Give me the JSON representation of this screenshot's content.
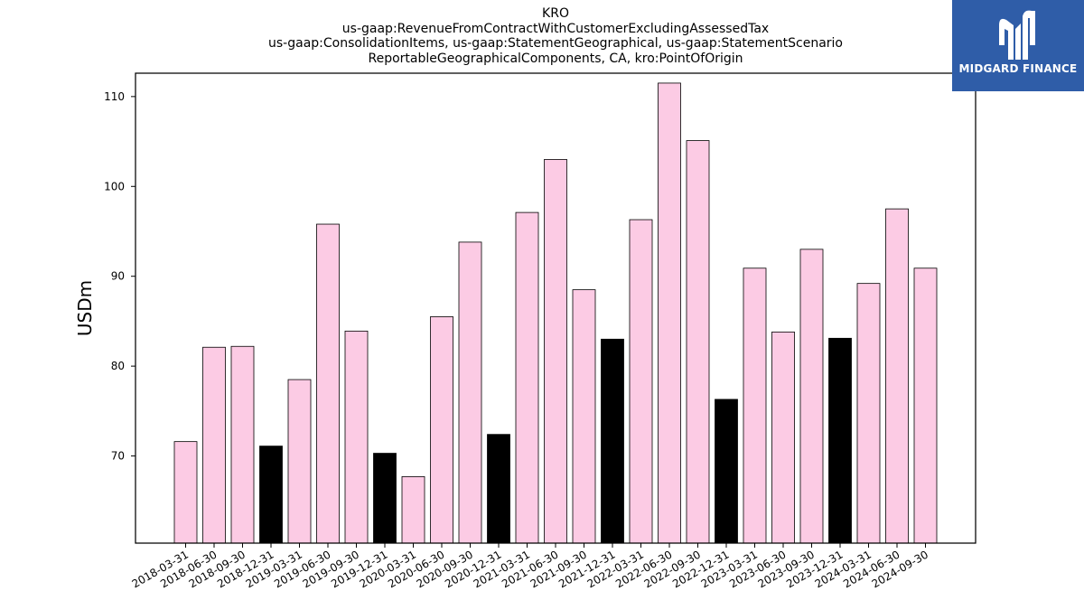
{
  "title_lines": [
    "KRO",
    "us-gaap:RevenueFromContractWithCustomerExcludingAssessedTax",
    "us-gaap:ConsolidationItems, us-gaap:StatementGeographical, us-gaap:StatementScenario",
    "ReportableGeographicalComponents, CA, kro:PointOfOrigin"
  ],
  "logo": {
    "text": "MIDGARD FINANCE",
    "background": "#2f5da8"
  },
  "colors": {
    "quarter_bar": "#fccbe4",
    "year_end_bar": "#000000",
    "bar_edge": "#000000"
  },
  "chart_data": {
    "type": "bar",
    "title": "KRO us-gaap:RevenueFromContractWithCustomerExcludingAssessedTax us-gaap:ConsolidationItems, us-gaap:StatementGeographical, us-gaap:StatementScenario ReportableGeographicalComponents, CA, kro:PointOfOrigin",
    "xlabel": "",
    "ylabel": "USDm",
    "ylim": [
      60.3,
      112.6
    ],
    "yticks": [
      70,
      80,
      90,
      100,
      110
    ],
    "grid": false,
    "categories": [
      "2018-03-31",
      "2018-06-30",
      "2018-09-30",
      "2018-12-31",
      "2019-03-31",
      "2019-06-30",
      "2019-09-30",
      "2019-12-31",
      "2020-03-31",
      "2020-06-30",
      "2020-09-30",
      "2020-12-31",
      "2021-03-31",
      "2021-06-30",
      "2021-09-30",
      "2021-12-31",
      "2022-03-31",
      "2022-06-30",
      "2022-09-30",
      "2022-12-31",
      "2023-03-31",
      "2023-06-30",
      "2023-09-30",
      "2023-12-31",
      "2024-03-31",
      "2024-06-30",
      "2024-09-30"
    ],
    "values": [
      71.6,
      82.1,
      82.2,
      71.1,
      78.5,
      95.8,
      83.9,
      70.3,
      67.7,
      85.5,
      93.8,
      72.4,
      97.1,
      103.0,
      88.5,
      83.0,
      96.3,
      111.5,
      105.1,
      76.3,
      90.9,
      83.8,
      93.0,
      83.1,
      89.2,
      97.5,
      90.9
    ],
    "highlight": [
      false,
      false,
      false,
      true,
      false,
      false,
      false,
      true,
      false,
      false,
      false,
      true,
      false,
      false,
      false,
      true,
      false,
      false,
      false,
      true,
      false,
      false,
      false,
      true,
      false,
      false,
      false
    ]
  }
}
